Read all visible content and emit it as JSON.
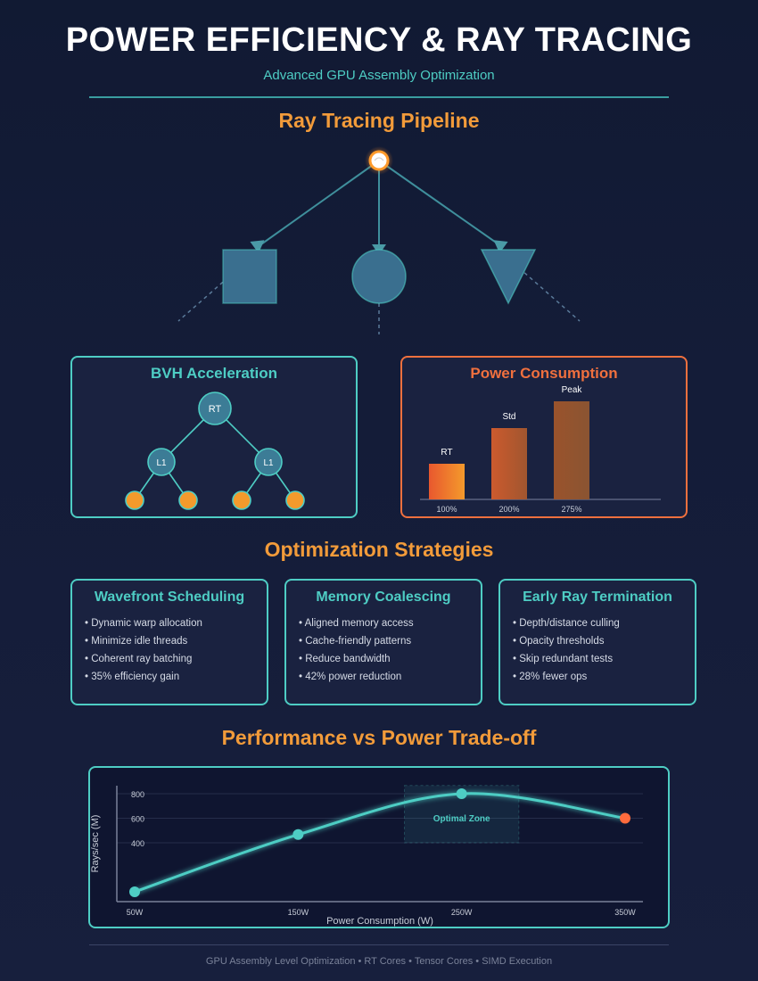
{
  "header": {
    "title": "POWER EFFICIENCY & RAY TRACING",
    "subtitle": "Advanced GPU Assembly Optimization"
  },
  "pipeline": {
    "heading": "Ray Tracing Pipeline"
  },
  "bvh": {
    "heading": "BVH Acceleration",
    "root_label": "RT",
    "child_labels": [
      "L1",
      "L1"
    ]
  },
  "power": {
    "heading": "Power Consumption",
    "bars": [
      {
        "label": "RT",
        "percent_label": "100%",
        "value": 100
      },
      {
        "label": "Std",
        "percent_label": "200%",
        "value": 200
      },
      {
        "label": "Peak",
        "percent_label": "275%",
        "value": 275
      }
    ]
  },
  "strategies": {
    "heading": "Optimization Strategies",
    "cards": [
      {
        "title": "Wavefront Scheduling",
        "items": [
          "• Dynamic warp allocation",
          "• Minimize idle threads",
          "• Coherent ray batching",
          "• 35% efficiency gain"
        ]
      },
      {
        "title": "Memory Coalescing",
        "items": [
          "• Aligned memory access",
          "• Cache-friendly patterns",
          "• Reduce bandwidth",
          "• 42% power reduction"
        ]
      },
      {
        "title": "Early Ray Termination",
        "items": [
          "• Depth/distance culling",
          "• Opacity thresholds",
          "• Skip redundant tests",
          "• 28% fewer ops"
        ]
      }
    ]
  },
  "tradeoff": {
    "heading": "Performance vs Power Trade-off",
    "chart_data": {
      "type": "line",
      "xlabel": "Power Consumption (W)",
      "ylabel": "Rays/sec (M)",
      "x_ticks": [
        "50W",
        "150W",
        "250W",
        "350W"
      ],
      "y_ticks": [
        "800",
        "600",
        "400"
      ],
      "points": [
        {
          "x": 50,
          "y": 0
        },
        {
          "x": 150,
          "y": 467
        },
        {
          "x": 250,
          "y": 800
        },
        {
          "x": 350,
          "y": 600
        }
      ],
      "annotation": "Optimal Zone",
      "optimal_zone_x": [
        215,
        285
      ],
      "optimal_zone_y": [
        400,
        867
      ],
      "colors": {
        "line": "#4ecdc4",
        "last_point": "#ff6b3d"
      }
    }
  },
  "footer": {
    "text": "GPU Assembly Level Optimization • RT Cores • Tensor Cores • SIMD Execution"
  }
}
